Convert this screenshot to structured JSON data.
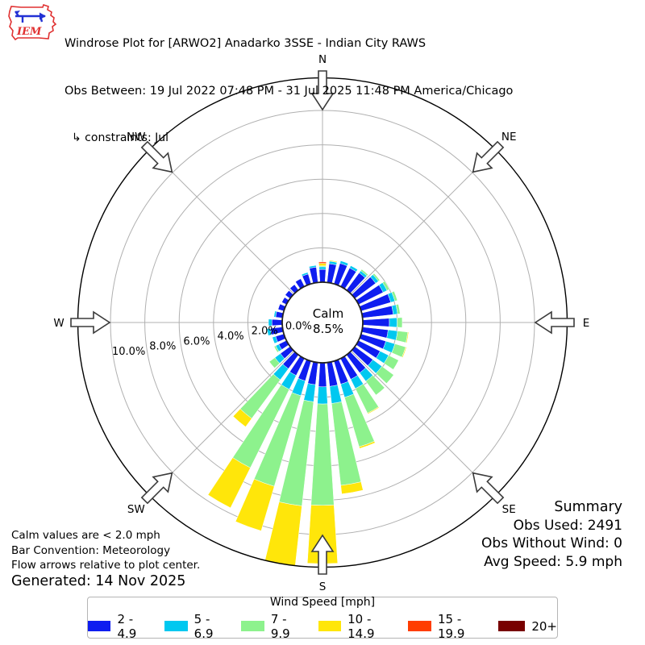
{
  "header": {
    "title": "Windrose Plot for [ARWO2] Anadarko 3SSE - Indian City RAWS",
    "obs_between": "Obs Between: 19 Jul 2022 07:48 PM - 31 Jul 2025 11:48 PM America/Chicago",
    "constraints": "↳ constraints: Jul",
    "logo_text": "IEM"
  },
  "summary": {
    "title": "Summary",
    "obs_used": "Obs Used: 2491",
    "obs_without_wind": "Obs Without Wind: 0",
    "avg_speed": "Avg Speed: 5.9 mph"
  },
  "notes": {
    "calm_note": "Calm values are < 2.0 mph",
    "convention_note": "Bar Convention: Meteorology",
    "arrows_note": "Flow arrows relative to plot center.",
    "generated": "Generated: 14 Nov 2025"
  },
  "legend": {
    "title": "Wind Speed [mph]"
  },
  "chart_data": {
    "type": "windrose",
    "title": "Windrose Plot for [ARWO2] Anadarko 3SSE - Indian City RAWS",
    "units": "mph",
    "calm_label": "Calm",
    "calm_value": "8.5%",
    "calm_threshold": "< 2.0 mph",
    "compass_labels": [
      "N",
      "NE",
      "E",
      "SE",
      "S",
      "SW",
      "W",
      "NW"
    ],
    "ring_values_pct": [
      2,
      4,
      6,
      8,
      10
    ],
    "ring_labels": [
      "0.0%",
      "2.0%",
      "4.0%",
      "6.0%",
      "8.0%",
      "10.0%"
    ],
    "rmax_pct": 11.9,
    "grid_color": "#b0b0b0",
    "outer_circle_color": "#000000",
    "directions_deg": [
      0,
      10,
      20,
      30,
      40,
      50,
      60,
      70,
      80,
      90,
      100,
      110,
      120,
      130,
      140,
      150,
      160,
      170,
      180,
      190,
      200,
      210,
      220,
      230,
      240,
      250,
      260,
      270,
      280,
      290,
      300,
      310,
      320,
      330,
      340,
      350
    ],
    "speed_bins": [
      {
        "label": "2 - 4.9",
        "color": "#0e1df0"
      },
      {
        "label": "5 - 6.9",
        "color": "#00c8f0"
      },
      {
        "label": "7 - 9.9",
        "color": "#8df28d"
      },
      {
        "label": "10 - 14.9",
        "color": "#ffe60a"
      },
      {
        "label": "15 - 19.9",
        "color": "#ff3d00"
      },
      {
        "label": "20+",
        "color": "#780000"
      }
    ],
    "series": [
      {
        "name": "2 - 4.9",
        "values": [
          0.75,
          1.1,
          1.25,
          1.2,
          1.25,
          1.5,
          1.6,
          1.8,
          1.8,
          1.55,
          1.5,
          1.5,
          1.4,
          1.3,
          1.3,
          1.35,
          1.4,
          1.4,
          1.4,
          1.3,
          1.2,
          1.1,
          1.0,
          0.7,
          0.5,
          0.5,
          0.7,
          0.6,
          0.4,
          0.35,
          0.3,
          0.35,
          0.4,
          0.5,
          0.6,
          0.9
        ]
      },
      {
        "name": "5 - 6.9",
        "values": [
          0.15,
          0.15,
          0.15,
          0.15,
          0.15,
          0.2,
          0.25,
          0.25,
          0.25,
          0.45,
          0.55,
          0.55,
          0.55,
          0.65,
          0.6,
          0.6,
          0.8,
          1.0,
          1.0,
          1.0,
          0.9,
          0.9,
          0.8,
          0.4,
          0.2,
          0.2,
          0.2,
          0.2,
          0.1,
          0,
          0,
          0,
          0,
          0,
          0.1,
          0.1
        ]
      },
      {
        "name": "7 - 9.9",
        "values": [
          0.05,
          0,
          0,
          0,
          0.1,
          0.1,
          0.15,
          0.15,
          0.15,
          0.3,
          0.6,
          0.65,
          0.65,
          0.85,
          1.0,
          1.6,
          3.0,
          4.8,
          5.9,
          6.1,
          5.5,
          5.1,
          2.8,
          0.4,
          0.1,
          0,
          0,
          0,
          0,
          0,
          0,
          0,
          0,
          0,
          0,
          0
        ]
      },
      {
        "name": "10 - 14.9",
        "values": [
          0.15,
          0.05,
          0,
          0,
          0,
          0,
          0,
          0,
          0,
          0,
          0.05,
          0.05,
          0,
          0,
          0,
          0.05,
          0.1,
          0.5,
          3.4,
          3.5,
          2.7,
          2.6,
          0.6,
          0,
          0,
          0,
          0,
          0,
          0,
          0,
          0,
          0,
          0,
          0,
          0,
          0
        ]
      },
      {
        "name": "15 - 19.9",
        "values": [
          0.08,
          0,
          0,
          0,
          0,
          0,
          0,
          0,
          0,
          0,
          0,
          0,
          0,
          0,
          0,
          0,
          0,
          0,
          0,
          0,
          0,
          0,
          0,
          0,
          0,
          0,
          0,
          0,
          0,
          0,
          0,
          0,
          0,
          0,
          0,
          0
        ]
      },
      {
        "name": "20+",
        "values": [
          0,
          0,
          0,
          0,
          0,
          0,
          0,
          0,
          0,
          0,
          0,
          0,
          0,
          0,
          0,
          0,
          0,
          0,
          0,
          0,
          0,
          0,
          0,
          0,
          0,
          0,
          0,
          0,
          0,
          0,
          0,
          0,
          0,
          0,
          0,
          0
        ]
      }
    ],
    "legend_title": "Wind Speed [mph]",
    "legend_position": "bottom"
  }
}
